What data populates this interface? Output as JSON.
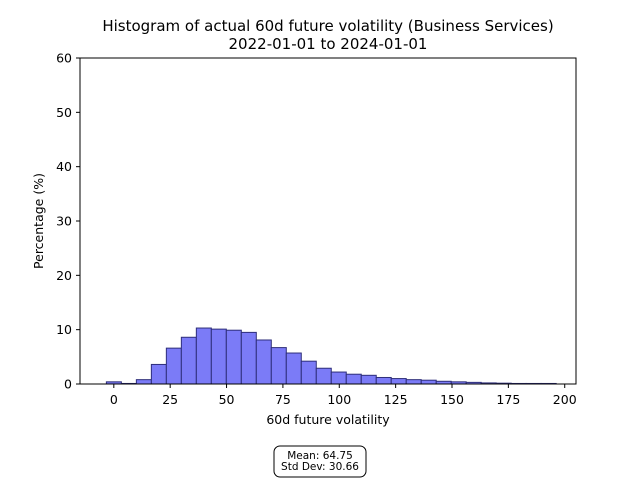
{
  "chart_data": {
    "type": "bar",
    "title_line1": "Histogram of actual 60d future volatility (Business Services)",
    "title_line2": "2022-01-01 to 2024-01-01",
    "xlabel": "60d future volatility",
    "ylabel": "Percentage (%)",
    "xlim": [
      -15,
      205
    ],
    "ylim": [
      0,
      60
    ],
    "x_ticks": [
      0,
      25,
      50,
      75,
      100,
      125,
      150,
      175,
      200
    ],
    "y_ticks": [
      0,
      10,
      20,
      30,
      40,
      50,
      60
    ],
    "bin_width": 6.65,
    "bin_start": -3.3,
    "values": [
      0.4,
      0.1,
      0.8,
      3.6,
      6.6,
      8.6,
      10.3,
      10.1,
      9.9,
      9.5,
      8.1,
      6.7,
      5.7,
      4.2,
      2.9,
      2.2,
      1.8,
      1.6,
      1.2,
      1.0,
      0.8,
      0.7,
      0.5,
      0.4,
      0.3,
      0.2,
      0.15,
      0.1,
      0.1,
      0.1
    ],
    "grid": false,
    "bar_color": "#7b7bf7",
    "edge_color": "#2e2e7a"
  },
  "stats": {
    "mean_label": "Mean: 64.75",
    "std_label": "Std Dev: 30.66"
  }
}
